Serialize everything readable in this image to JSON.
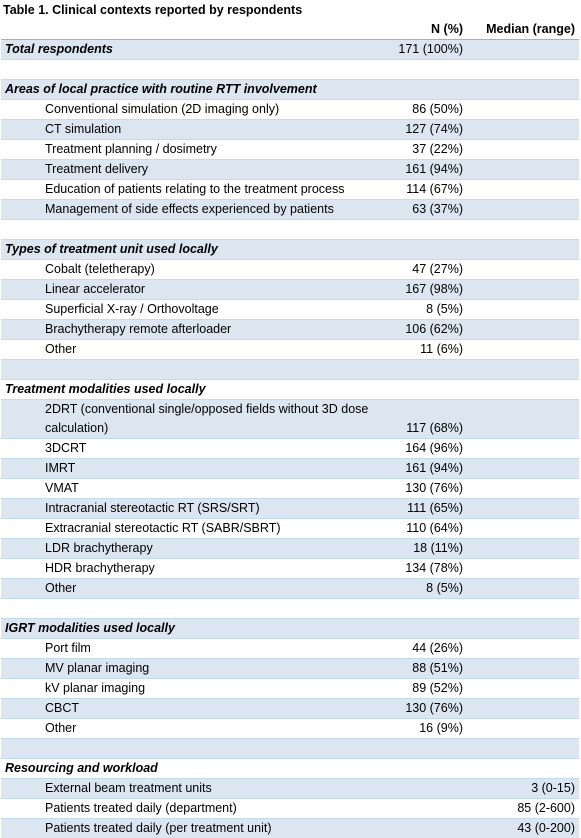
{
  "title": "Table 1. Clinical contexts reported by respondents",
  "header": [
    "N (%)",
    "Median (range)"
  ],
  "total": {
    "label": "Total respondents",
    "n": "171 (100%)"
  },
  "sections": [
    {
      "heading": "Areas of local practice with routine RTT involvement",
      "items": [
        {
          "label": "Conventional simulation (2D imaging only)",
          "n": "86 (50%)"
        },
        {
          "label": "CT simulation",
          "n": "127 (74%)"
        },
        {
          "label": "Treatment planning / dosimetry",
          "n": "37 (22%)"
        },
        {
          "label": "Treatment delivery",
          "n": "161 (94%)"
        },
        {
          "label": "Education of patients relating to the treatment process",
          "n": "114 (67%)"
        },
        {
          "label": "Management of side effects experienced by patients",
          "n": "63 (37%)"
        }
      ]
    },
    {
      "heading": "Types of treatment unit used locally",
      "items": [
        {
          "label": "Cobalt (teletherapy)",
          "n": "47 (27%)"
        },
        {
          "label": "Linear accelerator",
          "n": "167 (98%)"
        },
        {
          "label": "Superficial X-ray / Orthovoltage",
          "n": "8 (5%)"
        },
        {
          "label": "Brachytherapy remote afterloader",
          "n": "106 (62%)"
        },
        {
          "label": "Other",
          "n": "11 (6%)"
        }
      ]
    },
    {
      "heading": "Treatment modalities used locally",
      "items": [
        {
          "label": "2DRT (conventional single/opposed fields without 3D dose calculation)",
          "n": "117 (68%)"
        },
        {
          "label": "3DCRT",
          "n": "164 (96%)"
        },
        {
          "label": "IMRT",
          "n": "161 (94%)"
        },
        {
          "label": "VMAT",
          "n": "130 (76%)"
        },
        {
          "label": "Intracranial stereotactic RT (SRS/SRT)",
          "n": "111 (65%)"
        },
        {
          "label": "Extracranial stereotactic RT (SABR/SBRT)",
          "n": "110 (64%)"
        },
        {
          "label": "LDR brachytherapy",
          "n": "18 (11%)"
        },
        {
          "label": "HDR brachytherapy",
          "n": "134 (78%)"
        },
        {
          "label": "Other",
          "n": "8 (5%)"
        }
      ]
    },
    {
      "heading": "IGRT modalities used locally",
      "items": [
        {
          "label": "Port film",
          "n": "44 (26%)"
        },
        {
          "label": "MV planar imaging",
          "n": "88 (51%)"
        },
        {
          "label": "kV planar imaging",
          "n": "89 (52%)"
        },
        {
          "label": "CBCT",
          "n": "130 (76%)"
        },
        {
          "label": "Other",
          "n": "16 (9%)"
        }
      ]
    },
    {
      "heading": "Resourcing and workload",
      "items": [
        {
          "label": "External beam treatment units",
          "median": "3 (0-15)"
        },
        {
          "label": "Patients treated daily (department)",
          "median": "85 (2-600)"
        },
        {
          "label": "Patients treated daily (per treatment unit)",
          "median": "43 (0-200)"
        }
      ]
    }
  ]
}
